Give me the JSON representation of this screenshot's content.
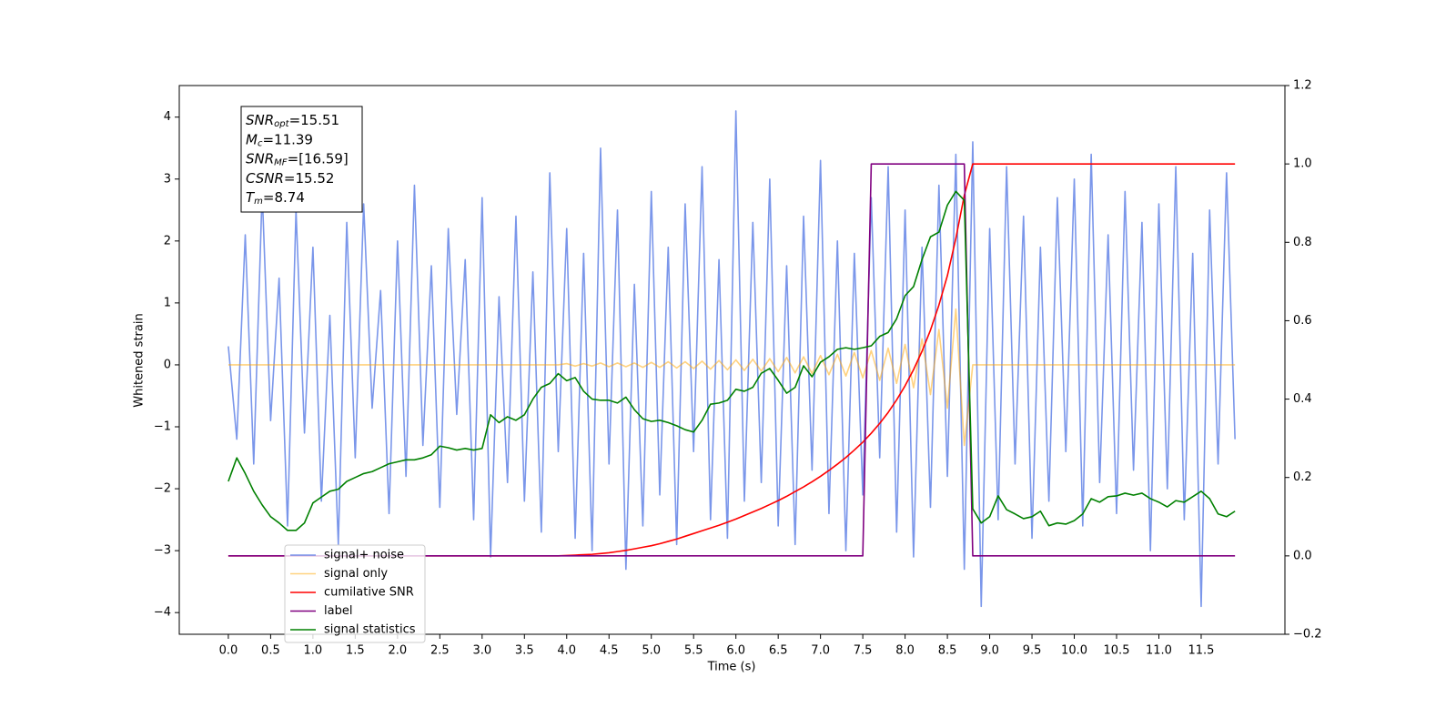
{
  "chart_data": {
    "type": "line",
    "xlabel": "Time (s)",
    "ylabel": "Whitened strain",
    "xlim": [
      -0.58,
      12.49
    ],
    "ylim": [
      -4.35,
      4.51
    ],
    "y2lim": [
      -0.2,
      1.2
    ],
    "xticks": [
      {
        "value": 0,
        "label": "0.0"
      },
      0.5,
      {
        "value": 1,
        "label": "1.0"
      },
      1.5,
      {
        "value": 2,
        "label": "2.0"
      },
      2.5,
      {
        "value": 3,
        "label": "3.0"
      },
      3.5,
      {
        "value": 4,
        "label": "4.0"
      },
      4.5,
      {
        "value": 5,
        "label": "5.0"
      },
      5.5,
      {
        "value": 6,
        "label": "6.0"
      },
      6.5,
      {
        "value": 7,
        "label": "7.0"
      },
      7.5,
      {
        "value": 8,
        "label": "8.0"
      },
      8.5,
      {
        "value": 9,
        "label": "9.0"
      },
      9.5,
      {
        "value": 10,
        "label": "10.0"
      },
      10.5,
      {
        "value": 11,
        "label": "11.0"
      },
      11.5
    ],
    "yticks": [
      {
        "value": -4,
        "label": "−4"
      },
      {
        "value": -3,
        "label": "−3"
      },
      {
        "value": -2,
        "label": "−2"
      },
      {
        "value": -1,
        "label": "−1"
      },
      0,
      1,
      2,
      3,
      4
    ],
    "y2ticks": [
      {
        "value": -0.2,
        "label": "−0.2"
      },
      {
        "value": 0,
        "label": "0.0"
      },
      0.2,
      0.4,
      0.6,
      0.8,
      {
        "value": 1,
        "label": "1.0"
      },
      1.2
    ],
    "legend_loc": "lower left",
    "annotations": [
      {
        "symbol": "SNR",
        "subscript": "opt",
        "text": "=15.51"
      },
      {
        "symbol": "M",
        "subscript": "c",
        "text": "=11.39"
      },
      {
        "symbol": "SNR",
        "subscript": "MF",
        "text": "=[16.59]"
      },
      {
        "symbol": "CSNR",
        "text": "=15.52"
      },
      {
        "symbol": "T",
        "subscript": "m",
        "text": "=8.74"
      }
    ],
    "x": [
      0,
      0.1,
      0.2,
      0.3,
      0.4,
      0.5,
      0.6,
      0.7,
      0.8,
      0.9,
      1,
      1.1,
      1.2,
      1.3,
      1.4,
      1.5,
      1.6,
      1.7,
      1.8,
      1.9,
      2,
      2.1,
      2.2,
      2.3,
      2.4,
      2.5,
      2.6,
      2.7,
      2.8,
      2.9,
      3,
      3.1,
      3.2,
      3.3,
      3.4,
      3.5,
      3.6,
      3.7,
      3.8,
      3.9,
      4,
      4.1,
      4.2,
      4.3,
      4.4,
      4.5,
      4.6,
      4.7,
      4.8,
      4.9,
      5,
      5.1,
      5.2,
      5.3,
      5.4,
      5.5,
      5.6,
      5.7,
      5.8,
      5.9,
      6,
      6.1,
      6.2,
      6.3,
      6.4,
      6.5,
      6.6,
      6.7,
      6.8,
      6.9,
      7,
      7.1,
      7.2,
      7.3,
      7.4,
      7.5,
      7.6,
      7.7,
      7.8,
      7.9,
      8,
      8.1,
      8.2,
      8.3,
      8.4,
      8.5,
      8.6,
      8.7,
      8.8,
      8.9,
      9,
      9.1,
      9.2,
      9.3,
      9.4,
      9.5,
      9.6,
      9.7,
      9.8,
      9.9,
      10,
      10.1,
      10.2,
      10.3,
      10.4,
      10.5,
      10.6,
      10.7,
      10.8,
      10.9,
      11,
      11.1,
      11.2,
      11.3,
      11.4,
      11.5,
      11.6,
      11.7,
      11.8,
      11.9
    ],
    "series": [
      {
        "name": "signal+ noise",
        "color": "#4169e1",
        "alpha": 0.7,
        "axis": "y",
        "values": [
          0.3,
          -1.2,
          2.1,
          -1.6,
          2.8,
          -0.9,
          1.4,
          -2.6,
          2.5,
          -1.1,
          1.9,
          -2.2,
          0.8,
          -2.9,
          2.3,
          -1.5,
          2.6,
          -0.7,
          1.2,
          -2.4,
          2.0,
          -1.8,
          2.9,
          -1.3,
          1.6,
          -2.3,
          2.2,
          -0.8,
          1.7,
          -2.5,
          2.7,
          -3.1,
          1.1,
          -1.9,
          2.4,
          -2.2,
          1.5,
          -2.7,
          3.1,
          -1.4,
          2.2,
          -2.8,
          1.8,
          -3.0,
          3.5,
          -1.6,
          2.5,
          -3.3,
          1.3,
          -2.6,
          2.8,
          -2.1,
          1.9,
          -2.9,
          2.6,
          -1.4,
          3.2,
          -2.5,
          1.7,
          -2.8,
          4.1,
          -2.2,
          2.3,
          -1.9,
          3.0,
          -2.6,
          1.6,
          -2.9,
          2.4,
          -1.7,
          3.3,
          -2.4,
          2.0,
          -3.0,
          1.8,
          -2.1,
          2.7,
          -1.5,
          3.2,
          -2.7,
          2.5,
          -3.1,
          1.9,
          -2.3,
          2.9,
          -1.8,
          3.4,
          -3.3,
          3.6,
          -3.9,
          2.2,
          -2.5,
          3.2,
          -1.6,
          2.4,
          -2.8,
          1.9,
          -2.2,
          2.7,
          -1.4,
          3.0,
          -2.6,
          3.4,
          -1.9,
          2.1,
          -2.4,
          2.8,
          -1.7,
          2.3,
          -3.0,
          2.6,
          -2.0,
          3.2,
          -2.5,
          1.8,
          -3.9,
          2.5,
          -1.6,
          3.1,
          -1.2
        ]
      },
      {
        "name": "signal only",
        "color": "#ffa500",
        "alpha": 0.5,
        "axis": "y",
        "values": [
          0,
          0,
          0,
          0,
          0,
          0,
          0,
          0,
          0,
          0,
          0,
          0,
          0,
          0,
          0,
          0,
          0,
          0,
          0,
          0,
          0,
          0,
          0,
          0,
          0,
          0,
          0,
          0,
          0,
          0,
          0,
          0,
          0,
          0,
          0,
          0,
          0,
          0,
          0,
          0,
          0.02,
          -0.02,
          0.02,
          -0.02,
          0.03,
          -0.03,
          0.03,
          -0.03,
          0.03,
          -0.04,
          0.04,
          -0.04,
          0.05,
          -0.05,
          0.05,
          -0.06,
          0.06,
          -0.07,
          0.07,
          -0.08,
          0.08,
          -0.09,
          0.09,
          -0.1,
          0.1,
          -0.11,
          0.12,
          -0.13,
          0.13,
          -0.14,
          0.15,
          -0.16,
          0.17,
          -0.18,
          0.2,
          -0.21,
          0.23,
          -0.25,
          0.27,
          -0.3,
          0.33,
          -0.37,
          0.42,
          -0.48,
          0.57,
          -0.7,
          0.9,
          -1.3,
          0,
          0,
          0,
          0,
          0,
          0,
          0,
          0,
          0,
          0,
          0,
          0,
          0,
          0,
          0,
          0,
          0,
          0,
          0,
          0,
          0,
          0,
          0,
          0,
          0,
          0,
          0,
          0,
          0,
          0,
          0,
          0
        ]
      },
      {
        "name": "cumilative SNR",
        "color": "#ff0000",
        "alpha": 1,
        "axis": "y2",
        "values": [
          0,
          0,
          0,
          0,
          0,
          0,
          0,
          0,
          0,
          0,
          0,
          0,
          0,
          0,
          0,
          0,
          0,
          0,
          0,
          0,
          0,
          0,
          0,
          0,
          0,
          0,
          0,
          0,
          0,
          0,
          0,
          0,
          0,
          0,
          0,
          0,
          0,
          0,
          0,
          0,
          0.001,
          0.002,
          0.003,
          0.004,
          0.006,
          0.008,
          0.011,
          0.014,
          0.018,
          0.022,
          0.026,
          0.031,
          0.037,
          0.043,
          0.05,
          0.057,
          0.064,
          0.071,
          0.078,
          0.086,
          0.094,
          0.103,
          0.112,
          0.121,
          0.131,
          0.141,
          0.152,
          0.164,
          0.176,
          0.189,
          0.203,
          0.218,
          0.234,
          0.251,
          0.27,
          0.29,
          0.313,
          0.338,
          0.366,
          0.398,
          0.434,
          0.475,
          0.522,
          0.576,
          0.64,
          0.715,
          0.81,
          0.92,
          1,
          1,
          1,
          1,
          1,
          1,
          1,
          1,
          1,
          1,
          1,
          1,
          1,
          1,
          1,
          1,
          1,
          1,
          1,
          1,
          1,
          1,
          1,
          1,
          1,
          1,
          1,
          1,
          1,
          1,
          1,
          1
        ]
      },
      {
        "name": "label",
        "color": "#800080",
        "alpha": 1,
        "axis": "y2",
        "values": [
          0,
          0,
          0,
          0,
          0,
          0,
          0,
          0,
          0,
          0,
          0,
          0,
          0,
          0,
          0,
          0,
          0,
          0,
          0,
          0,
          0,
          0,
          0,
          0,
          0,
          0,
          0,
          0,
          0,
          0,
          0,
          0,
          0,
          0,
          0,
          0,
          0,
          0,
          0,
          0,
          0,
          0,
          0,
          0,
          0,
          0,
          0,
          0,
          0,
          0,
          0,
          0,
          0,
          0,
          0,
          0,
          0,
          0,
          0,
          0,
          0,
          0,
          0,
          0,
          0,
          0,
          0,
          0,
          0,
          0,
          0,
          0,
          0,
          0,
          0,
          0,
          1,
          1,
          1,
          1,
          1,
          1,
          1,
          1,
          1,
          1,
          1,
          1,
          0,
          0,
          0,
          0,
          0,
          0,
          0,
          0,
          0,
          0,
          0,
          0,
          0,
          0,
          0,
          0,
          0,
          0,
          0,
          0,
          0,
          0,
          0,
          0,
          0,
          0,
          0,
          0,
          0,
          0,
          0,
          0
        ]
      },
      {
        "name": "signal statistics",
        "color": "#008000",
        "alpha": 1,
        "axis": "y2",
        "values": [
          0.19,
          0.25,
          0.21,
          0.165,
          0.13,
          0.1,
          0.084,
          0.065,
          0.065,
          0.084,
          0.135,
          0.15,
          0.165,
          0.17,
          0.19,
          0.2,
          0.21,
          0.215,
          0.225,
          0.235,
          0.24,
          0.245,
          0.245,
          0.25,
          0.258,
          0.28,
          0.276,
          0.27,
          0.274,
          0.27,
          0.274,
          0.36,
          0.34,
          0.355,
          0.346,
          0.36,
          0.4,
          0.43,
          0.44,
          0.465,
          0.447,
          0.455,
          0.42,
          0.4,
          0.397,
          0.397,
          0.39,
          0.405,
          0.373,
          0.35,
          0.343,
          0.346,
          0.34,
          0.332,
          0.322,
          0.316,
          0.346,
          0.387,
          0.39,
          0.397,
          0.425,
          0.42,
          0.43,
          0.466,
          0.478,
          0.448,
          0.415,
          0.43,
          0.485,
          0.457,
          0.494,
          0.508,
          0.527,
          0.531,
          0.527,
          0.531,
          0.536,
          0.56,
          0.57,
          0.605,
          0.664,
          0.687,
          0.756,
          0.814,
          0.826,
          0.895,
          0.93,
          0.907,
          0.12,
          0.084,
          0.1,
          0.153,
          0.118,
          0.107,
          0.095,
          0.1,
          0.114,
          0.077,
          0.084,
          0.081,
          0.09,
          0.107,
          0.146,
          0.137,
          0.151,
          0.153,
          0.16,
          0.155,
          0.16,
          0.146,
          0.137,
          0.125,
          0.141,
          0.137,
          0.151,
          0.165,
          0.146,
          0.107,
          0.1,
          0.114
        ]
      }
    ]
  }
}
